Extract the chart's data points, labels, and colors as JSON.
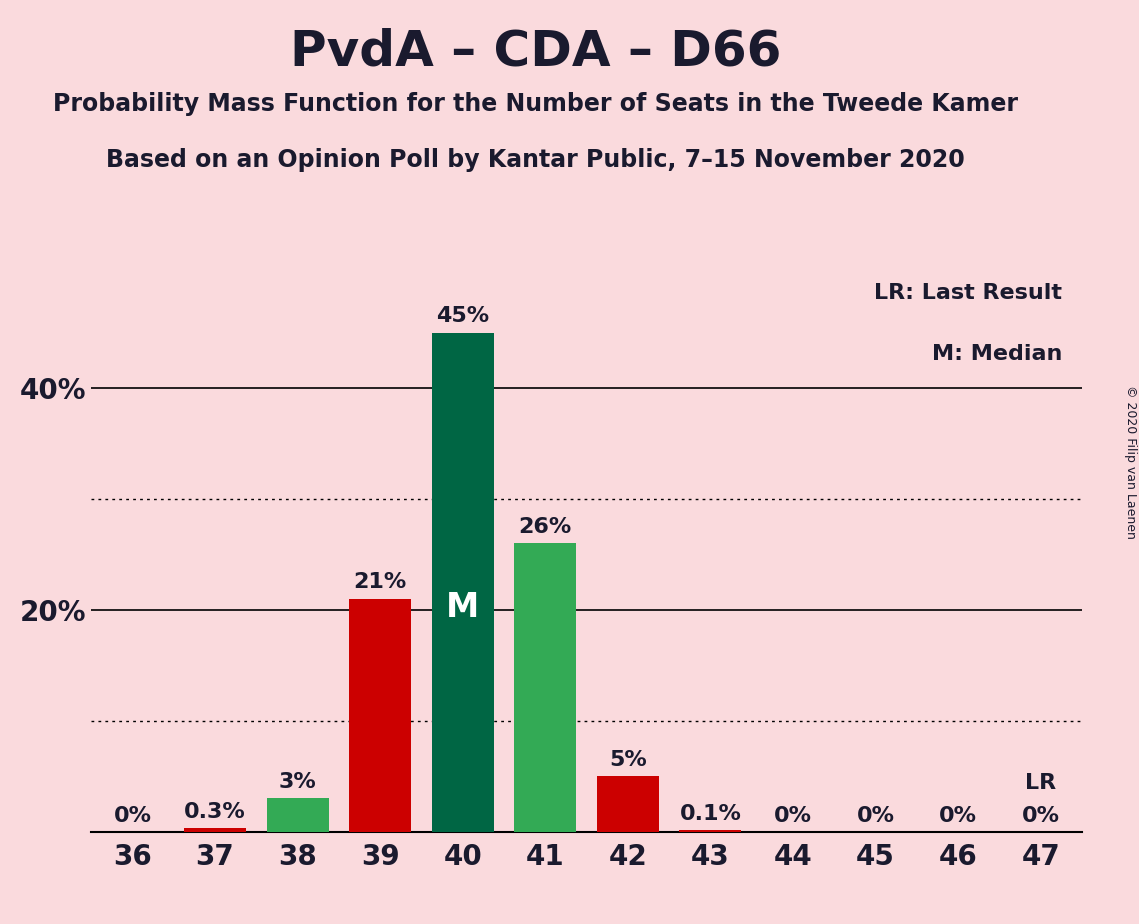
{
  "title": "PvdA – CDA – D66",
  "subtitle1": "Probability Mass Function for the Number of Seats in the Tweede Kamer",
  "subtitle2": "Based on an Opinion Poll by Kantar Public, 7–15 November 2020",
  "copyright": "© 2020 Filip van Laenen",
  "legend_lr": "LR: Last Result",
  "legend_m": "M: Median",
  "seats": [
    36,
    37,
    38,
    39,
    40,
    41,
    42,
    43,
    44,
    45,
    46,
    47
  ],
  "values": [
    0.0,
    0.3,
    3.0,
    21.0,
    45.0,
    26.0,
    5.0,
    0.1,
    0.0,
    0.0,
    0.0,
    0.0
  ],
  "labels": [
    "0%",
    "0.3%",
    "3%",
    "21%",
    "45%",
    "26%",
    "5%",
    "0.1%",
    "0%",
    "0%",
    "0%",
    "0%"
  ],
  "bar_colors": [
    "#cc0000",
    "#cc0000",
    "#33aa55",
    "#cc0000",
    "#006644",
    "#33aa55",
    "#cc0000",
    "#cc0000",
    "#cc0000",
    "#cc0000",
    "#cc0000",
    "#cc0000"
  ],
  "median_seat": 40,
  "last_result_seat": 47,
  "last_result_label": "LR",
  "median_label": "M",
  "background_color": "#fadadd",
  "ylim": [
    0,
    50
  ],
  "yticks": [
    10,
    20,
    30,
    40
  ],
  "ytick_labels": [
    "",
    "20%",
    "",
    "40%"
  ],
  "solid_gridlines": [
    20.0,
    40.0
  ],
  "dotted_gridlines": [
    10.0,
    30.0
  ],
  "title_fontsize": 36,
  "subtitle_fontsize": 17,
  "label_fontsize": 16,
  "tick_fontsize": 20,
  "copyright_fontsize": 9
}
